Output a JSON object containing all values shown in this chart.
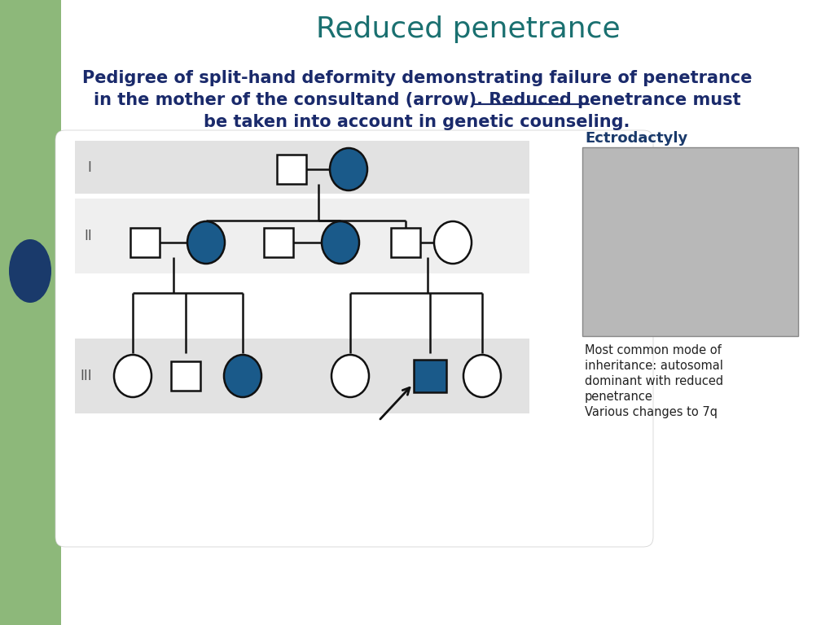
{
  "title": "Reduced penetrance",
  "title_color": "#1a7070",
  "bg_color": "#ffffff",
  "green_sidebar_color": "#8db87a",
  "blue_tab_color": "#1a3a6b",
  "filled_color": "#1a5a8a",
  "empty_fill": "#ffffff",
  "ectrodactyly_label": "Ectrodactyly",
  "ectrodactyly_label_color": "#1a3a6b",
  "side_text_line1": "Most common mode of",
  "side_text_line2": "inheritance: autosomal",
  "side_text_line3": "dominant with reduced",
  "side_text_line4": "penetrance",
  "side_text_line5": "Various changes to 7q",
  "side_text_color": "#222222",
  "caption_line1": "Pedigree of split-hand deformity demonstrating failure of penetrance",
  "caption_line2_pre": "in the mother of the consultand (arrow). ",
  "caption_bold_underline": "Reduced penetrance",
  "caption_line2_post": " must",
  "caption_line3": "be taken into account in genetic counseling.",
  "caption_color": "#1a2a6b",
  "caption_fontsize": 15
}
